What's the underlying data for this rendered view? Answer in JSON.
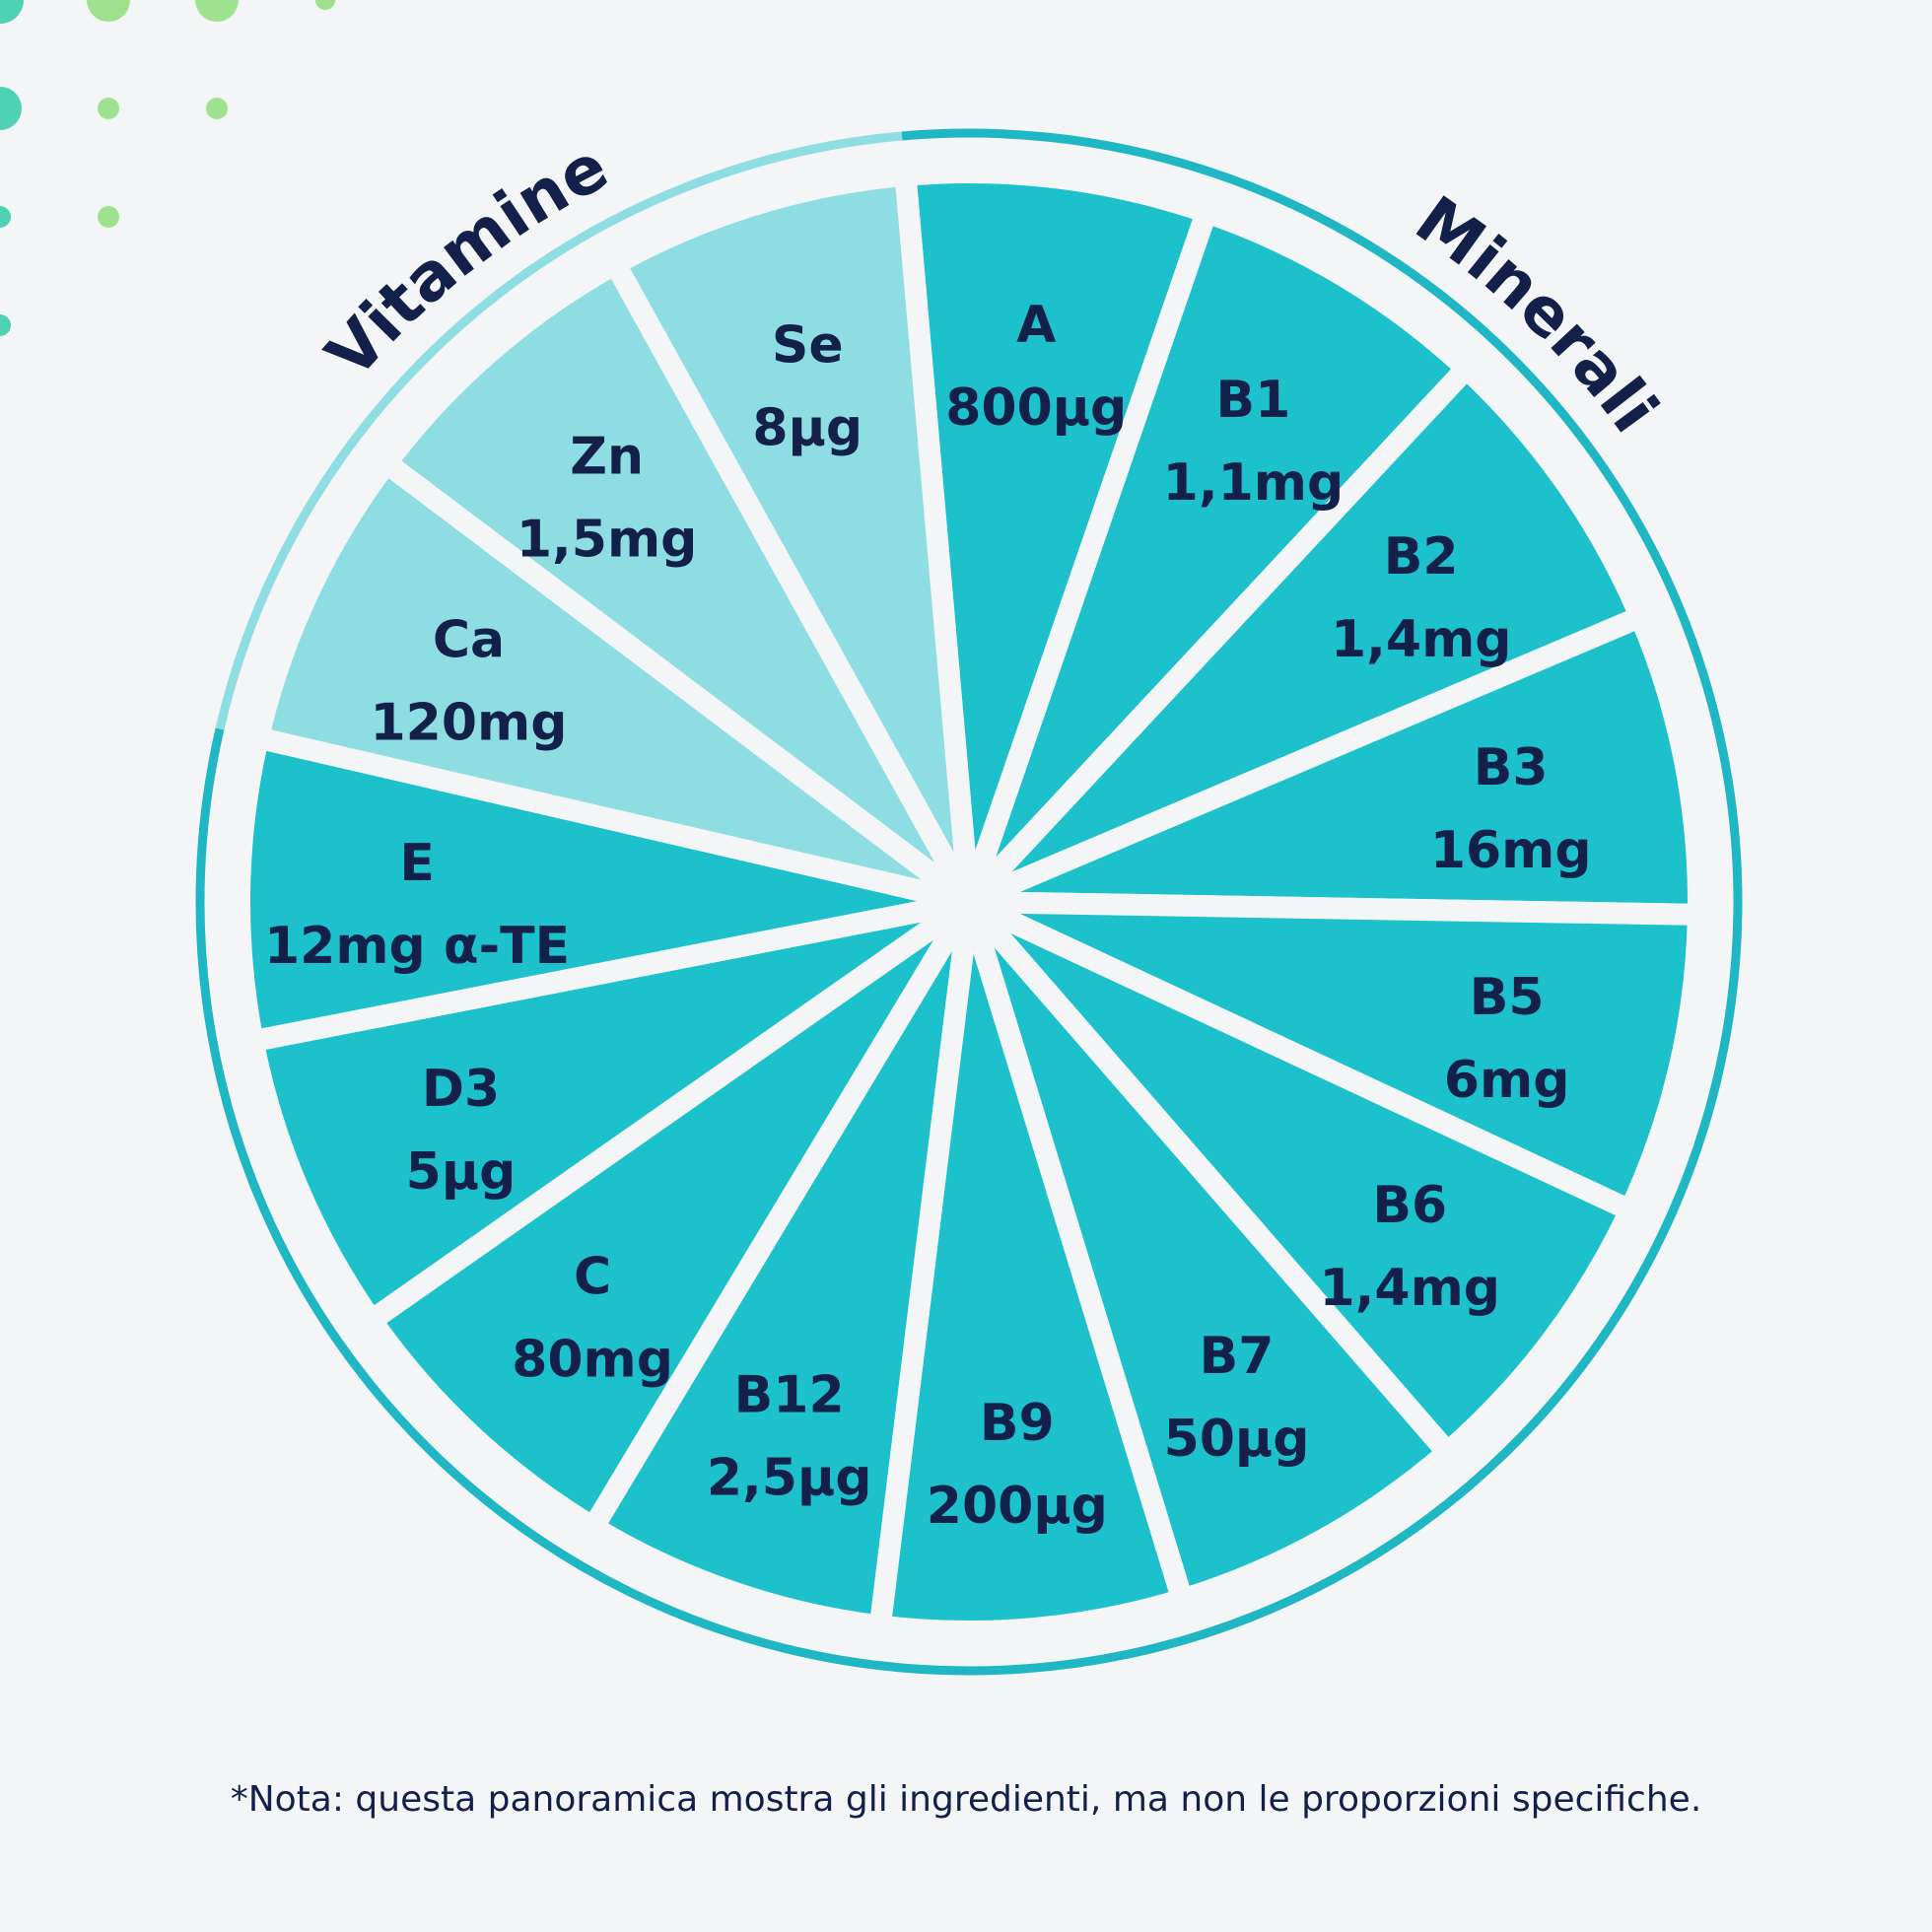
{
  "colors": {
    "background": "#f4f5f6",
    "vitamin_fill": "#1dc1cb",
    "mineral_fill": "#8ddde2",
    "ring_vitamin": "#1fb7c3",
    "ring_mineral": "#8ddde2",
    "text": "#13214a",
    "dot_green": "#9ee290",
    "dot_teal": "#4fd1b3"
  },
  "labels": {
    "vitamins": "Vitamine",
    "minerals": "Minerali"
  },
  "segments": [
    {
      "name": "A",
      "amount": "800µg",
      "group": "vitamin"
    },
    {
      "name": "B1",
      "amount": "1,1mg",
      "group": "vitamin"
    },
    {
      "name": "B2",
      "amount": "1,4mg",
      "group": "vitamin"
    },
    {
      "name": "B3",
      "amount": "16mg",
      "group": "vitamin"
    },
    {
      "name": "B5",
      "amount": "6mg",
      "group": "vitamin"
    },
    {
      "name": "B6",
      "amount": "1,4mg",
      "group": "vitamin"
    },
    {
      "name": "B7",
      "amount": "50µg",
      "group": "vitamin"
    },
    {
      "name": "B9",
      "amount": "200µg",
      "group": "vitamin"
    },
    {
      "name": "B12",
      "amount": "2,5µg",
      "group": "vitamin"
    },
    {
      "name": "C",
      "amount": "80mg",
      "group": "vitamin"
    },
    {
      "name": "D3",
      "amount": "5µg",
      "group": "vitamin"
    },
    {
      "name": "E",
      "amount": "12mg α-TE",
      "group": "vitamin"
    },
    {
      "name": "Ca",
      "amount": "120mg",
      "group": "mineral"
    },
    {
      "name": "Zn",
      "amount": "1,5mg",
      "group": "mineral"
    },
    {
      "name": "Se",
      "amount": "8µg",
      "group": "mineral"
    }
  ],
  "note": "*Nota: questa panoramica mostra gli ingredienti, ma non le proporzioni specifiche."
}
